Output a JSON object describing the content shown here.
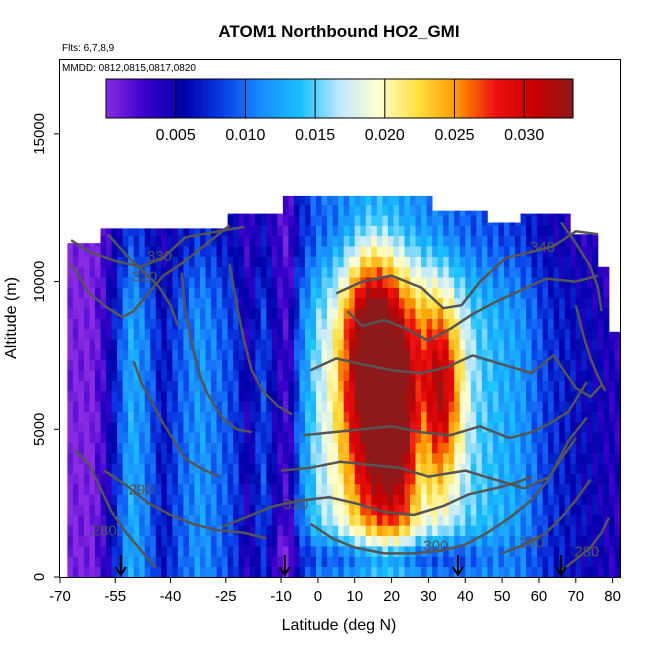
{
  "chart_data": {
    "type": "heatmap",
    "title": "ATOM1 Northbound HO2_GMI",
    "notes": [
      "Flts: 6,7,8,9",
      "MMDD: 0812,0815,0817,0820"
    ],
    "xlabel": "Latitude (deg N)",
    "ylabel": "Altitude (m)",
    "xlim": [
      -70,
      82
    ],
    "ylim": [
      0,
      17500
    ],
    "x_ticks": [
      {
        "value": -70,
        "label": "-70"
      },
      {
        "value": -55,
        "label": "-55"
      },
      {
        "value": -40,
        "label": "-40"
      },
      {
        "value": -25,
        "label": "-25"
      },
      {
        "value": -10,
        "label": "-10"
      },
      {
        "value": 0,
        "label": "0"
      },
      {
        "value": 10,
        "label": "10"
      },
      {
        "value": 20,
        "label": "20"
      },
      {
        "value": 30,
        "label": "30"
      },
      {
        "value": 40,
        "label": "40"
      },
      {
        "value": 50,
        "label": "50"
      },
      {
        "value": 60,
        "label": "60"
      },
      {
        "value": 70,
        "label": "70"
      },
      {
        "value": 80,
        "label": "80"
      }
    ],
    "y_ticks": [
      {
        "value": 0,
        "label": "0"
      },
      {
        "value": 5000,
        "label": "5000"
      },
      {
        "value": 10000,
        "label": "10000"
      },
      {
        "value": 15000,
        "label": "15000"
      }
    ],
    "colorbar": {
      "range": [
        0,
        0.0335
      ],
      "ticks": [
        {
          "value": 0.005,
          "label": "0.005"
        },
        {
          "value": 0.01,
          "label": "0.010"
        },
        {
          "value": 0.015,
          "label": "0.015"
        },
        {
          "value": 0.02,
          "label": "0.020"
        },
        {
          "value": 0.025,
          "label": "0.025"
        },
        {
          "value": 0.03,
          "label": "0.030"
        }
      ],
      "colors": [
        "#8a2be2",
        "#3a00cc",
        "#0000a8",
        "#0a3ee8",
        "#1a8cff",
        "#18c0ff",
        "#bfe8ff",
        "#ffffd0",
        "#ffe040",
        "#ff9900",
        "#ee1010",
        "#c80000",
        "#8c1a1a"
      ]
    },
    "flight_markers_lat": [
      -53.5,
      -9,
      38,
      66
    ],
    "contours": [
      {
        "label": "330",
        "label_at": [
          -43,
          10700
        ],
        "points": [
          [
            -67,
            11400
          ],
          [
            -62,
            11000
          ],
          [
            -55,
            10700
          ],
          [
            -48,
            10500
          ],
          [
            -42,
            10800
          ],
          [
            -36,
            11500
          ],
          [
            -27,
            11700
          ],
          [
            -20,
            11850
          ]
        ]
      },
      {
        "label": "320",
        "label_at": [
          -47,
          10000
        ],
        "points": [
          [
            -67,
            10600
          ],
          [
            -62,
            9600
          ],
          [
            -57,
            9100
          ],
          [
            -53,
            8800
          ],
          [
            -50,
            9000
          ],
          [
            -46,
            9600
          ],
          [
            -42,
            10200
          ],
          [
            -36,
            10700
          ],
          [
            -30,
            11300
          ],
          [
            -24,
            11900
          ]
        ]
      },
      {
        "label": "340",
        "label_at": [
          61,
          11000
        ],
        "points": [
          [
            5,
            9600
          ],
          [
            12,
            10000
          ],
          [
            20,
            10200
          ],
          [
            28,
            9800
          ],
          [
            34,
            9100
          ],
          [
            39,
            9200
          ],
          [
            44,
            10000
          ],
          [
            51,
            10800
          ],
          [
            58,
            11000
          ],
          [
            64,
            11200
          ],
          [
            70,
            11700
          ],
          [
            76,
            11600
          ]
        ]
      },
      {
        "label": "",
        "label_at": null,
        "points": [
          [
            8,
            9000
          ],
          [
            12,
            8500
          ],
          [
            18,
            8700
          ],
          [
            24,
            8400
          ],
          [
            30,
            8000
          ],
          [
            36,
            8400
          ],
          [
            42,
            8900
          ],
          [
            48,
            9300
          ],
          [
            55,
            9700
          ],
          [
            62,
            10100
          ],
          [
            70,
            10000
          ],
          [
            76,
            10200
          ]
        ]
      },
      {
        "label": "",
        "label_at": null,
        "points": [
          [
            -2,
            7000
          ],
          [
            5,
            7400
          ],
          [
            12,
            7200
          ],
          [
            20,
            7000
          ],
          [
            28,
            6900
          ],
          [
            35,
            7100
          ],
          [
            42,
            7500
          ],
          [
            50,
            7200
          ],
          [
            58,
            6900
          ],
          [
            64,
            7500
          ],
          [
            70,
            6400
          ],
          [
            74,
            6100
          ],
          [
            77,
            6500
          ]
        ]
      },
      {
        "label": "",
        "label_at": null,
        "points": [
          [
            -4,
            4800
          ],
          [
            4,
            4900
          ],
          [
            12,
            5000
          ],
          [
            20,
            5100
          ],
          [
            28,
            4900
          ],
          [
            36,
            4800
          ],
          [
            44,
            5100
          ],
          [
            52,
            4700
          ],
          [
            58,
            4900
          ],
          [
            63,
            5200
          ],
          [
            68,
            5600
          ],
          [
            73,
            6600
          ]
        ]
      },
      {
        "label": "",
        "label_at": null,
        "points": [
          [
            -10,
            3600
          ],
          [
            -2,
            3700
          ],
          [
            6,
            3900
          ],
          [
            14,
            3800
          ],
          [
            22,
            3700
          ],
          [
            30,
            3400
          ],
          [
            40,
            3600
          ],
          [
            48,
            3300
          ],
          [
            56,
            3000
          ],
          [
            63,
            3400
          ],
          [
            68,
            4600
          ],
          [
            73,
            5400
          ]
        ]
      },
      {
        "label": "310",
        "label_at": [
          -6,
          2300
        ],
        "points": [
          [
            -26,
            1700
          ],
          [
            -18,
            2100
          ],
          [
            -12,
            2400
          ],
          [
            -4,
            2600
          ],
          [
            3,
            2700
          ],
          [
            10,
            2500
          ],
          [
            18,
            2200
          ],
          [
            26,
            2100
          ],
          [
            34,
            2400
          ],
          [
            41,
            2800
          ],
          [
            48,
            3000
          ],
          [
            54,
            3200
          ],
          [
            58,
            3400
          ]
        ]
      },
      {
        "label": "300",
        "label_at": [
          32,
          900
        ],
        "points": [
          [
            -2,
            1800
          ],
          [
            4,
            1300
          ],
          [
            10,
            1000
          ],
          [
            18,
            800
          ],
          [
            26,
            800
          ],
          [
            34,
            900
          ],
          [
            40,
            1100
          ],
          [
            46,
            1500
          ],
          [
            52,
            2000
          ],
          [
            58,
            2600
          ],
          [
            62,
            3200
          ],
          [
            66,
            4000
          ],
          [
            70,
            4700
          ]
        ]
      },
      {
        "label": "290",
        "label_at": [
          -48,
          2800
        ],
        "points": [
          [
            -58,
            3600
          ],
          [
            -52,
            3100
          ],
          [
            -46,
            2500
          ],
          [
            -40,
            2100
          ],
          [
            -34,
            1800
          ],
          [
            -28,
            1600
          ],
          [
            -20,
            1500
          ],
          [
            -14,
            1300
          ]
        ]
      },
      {
        "label": "290",
        "label_at": [
          58,
          1000
        ],
        "points": [
          [
            50,
            800
          ],
          [
            56,
            1100
          ],
          [
            62,
            1500
          ],
          [
            66,
            2000
          ],
          [
            70,
            2600
          ],
          [
            74,
            3300
          ]
        ]
      },
      {
        "label": "280",
        "label_at": [
          -58,
          1400
        ],
        "points": [
          [
            -66,
            4300
          ],
          [
            -62,
            3800
          ],
          [
            -59,
            3000
          ],
          [
            -56,
            2200
          ],
          [
            -52,
            1500
          ],
          [
            -48,
            900
          ],
          [
            -44,
            300
          ]
        ]
      },
      {
        "label": "280",
        "label_at": [
          73,
          700
        ],
        "points": [
          [
            66,
            200
          ],
          [
            70,
            600
          ],
          [
            74,
            1000
          ],
          [
            77,
            1500
          ],
          [
            79,
            2000
          ]
        ]
      },
      {
        "label": "",
        "label_at": null,
        "points": [
          [
            -50,
            7300
          ],
          [
            -48,
            6600
          ],
          [
            -45,
            5900
          ],
          [
            -42,
            5200
          ],
          [
            -39,
            4600
          ],
          [
            -36,
            4000
          ],
          [
            -32,
            3700
          ],
          [
            -27,
            3400
          ]
        ]
      },
      {
        "label": "",
        "label_at": null,
        "points": [
          [
            -37,
            10300
          ],
          [
            -36,
            9000
          ],
          [
            -34,
            7800
          ],
          [
            -32,
            6800
          ],
          [
            -30,
            6200
          ],
          [
            -26,
            5400
          ],
          [
            -22,
            5000
          ],
          [
            -18,
            4900
          ]
        ]
      },
      {
        "label": "",
        "label_at": null,
        "points": [
          [
            -24,
            10600
          ],
          [
            -22,
            9200
          ],
          [
            -20,
            8000
          ],
          [
            -18,
            7000
          ],
          [
            -15,
            6300
          ],
          [
            -11,
            5800
          ],
          [
            -7,
            5500
          ]
        ]
      },
      {
        "label": "",
        "label_at": null,
        "points": [
          [
            -57,
            11600
          ],
          [
            -52,
            10900
          ],
          [
            -47,
            10300
          ],
          [
            -43,
            9800
          ],
          [
            -40,
            9200
          ],
          [
            -38,
            8500
          ]
        ]
      },
      {
        "label": "",
        "label_at": null,
        "points": [
          [
            66,
            12000
          ],
          [
            70,
            11300
          ],
          [
            74,
            10500
          ],
          [
            76,
            9800
          ],
          [
            77,
            9000
          ]
        ]
      },
      {
        "label": "",
        "label_at": null,
        "points": [
          [
            70,
            9200
          ],
          [
            72,
            8200
          ],
          [
            74,
            7400
          ],
          [
            76,
            6800
          ],
          [
            78,
            6300
          ]
        ]
      }
    ]
  }
}
